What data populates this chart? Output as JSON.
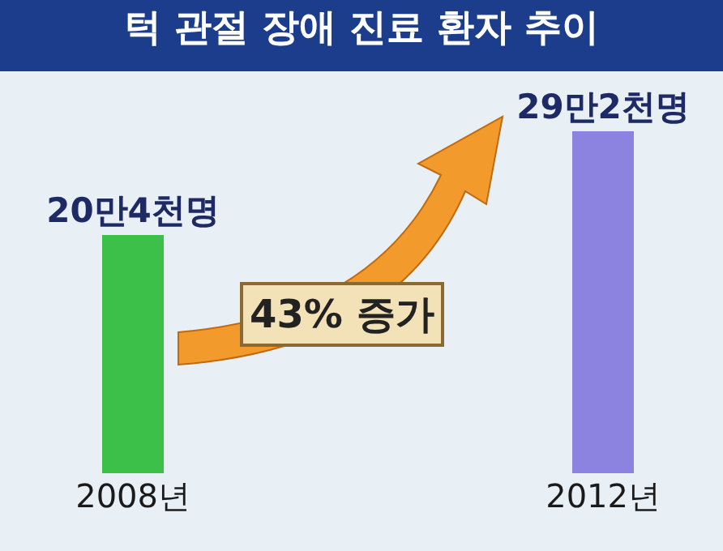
{
  "chart_data": {
    "type": "bar",
    "title": "턱 관절 장애 진료 환자 추이",
    "categories": [
      "2008년",
      "2012년"
    ],
    "values": [
      20.4,
      29.2
    ],
    "value_labels": [
      "20만4천명",
      "29만2천명"
    ],
    "colors": [
      "#3cc04a",
      "#8c82e0"
    ],
    "annotations": [
      "43% 증가"
    ]
  }
}
